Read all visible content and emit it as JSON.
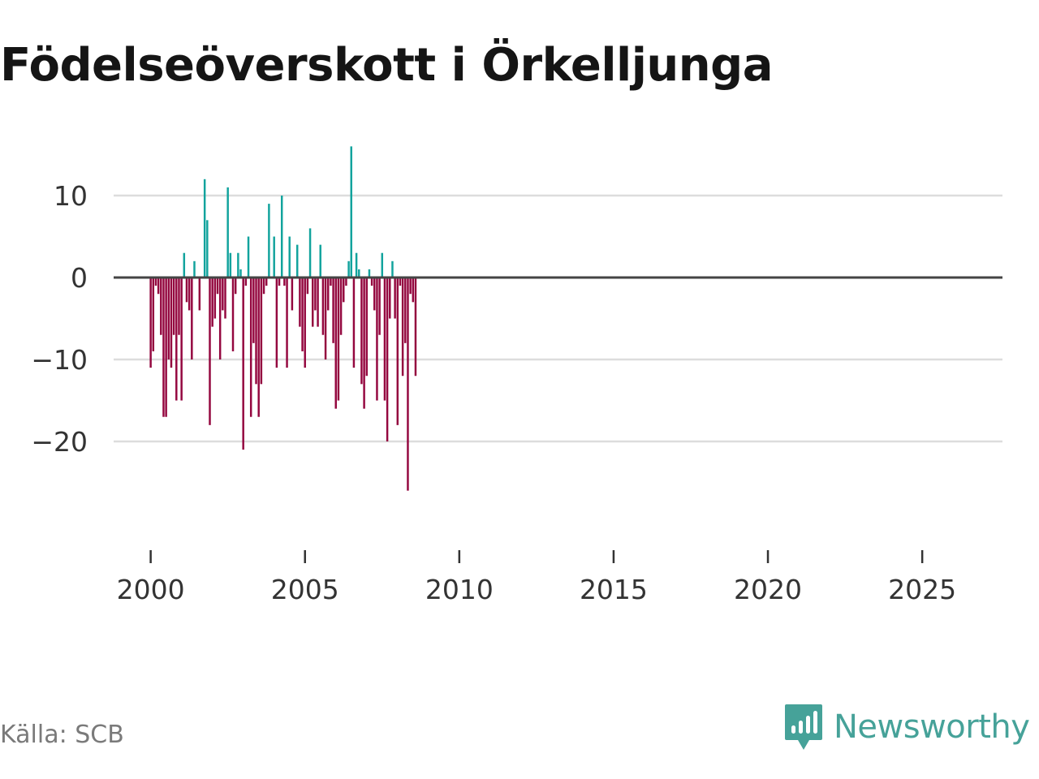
{
  "title": "Födelseöverskott i Örkelljunga",
  "source": "Källa: SCB",
  "brand": "Newsworthy",
  "colors": {
    "positive": "#12a39d",
    "negative": "#94073f",
    "zero_line": "#444444",
    "grid": "#dddddd",
    "brand": "#46a299"
  },
  "chart_data": {
    "type": "bar",
    "title": "Födelseöverskott i Örkelljunga",
    "xlabel": "",
    "ylabel": "",
    "x_ticks": [
      "2000",
      "2005",
      "2010",
      "2015",
      "2020",
      "2025"
    ],
    "y_ticks": [
      10,
      0,
      -10,
      -20
    ],
    "y_tick_labels": [
      "10",
      "0",
      "−10",
      "−20"
    ],
    "ylim": [
      -29.5,
      20
    ],
    "xlim": [
      1998.8,
      2027.6
    ],
    "period": "monthly",
    "first_month": "2000-01",
    "values": [
      -11,
      -9,
      -1,
      -2,
      -7,
      -17,
      -17,
      -10,
      -11,
      -7,
      -15,
      -7,
      -15,
      3,
      -3,
      -4,
      -10,
      2,
      0,
      -4,
      0,
      12,
      7,
      -18,
      -6,
      -5,
      -2,
      -10,
      -4,
      -5,
      11,
      3,
      -9,
      -2,
      3,
      1,
      -21,
      -1,
      5,
      -17,
      -8,
      -13,
      -17,
      -13,
      -2,
      -1,
      9,
      0,
      5,
      -11,
      -1,
      10,
      -1,
      -11,
      5,
      -4,
      0,
      4,
      -6,
      -9,
      -11,
      -2,
      6,
      -6,
      -4,
      -6,
      4,
      -7,
      -10,
      -4,
      -1,
      -8,
      -16,
      -15,
      -7,
      -3,
      -1,
      2,
      16,
      -11,
      3,
      1,
      -13,
      -16,
      -12,
      1,
      -1,
      -4,
      -15,
      -7,
      3,
      -15,
      -20,
      -5,
      2,
      -5,
      -18,
      -1,
      -12,
      -8,
      -26,
      -2,
      -3,
      -12
    ]
  }
}
